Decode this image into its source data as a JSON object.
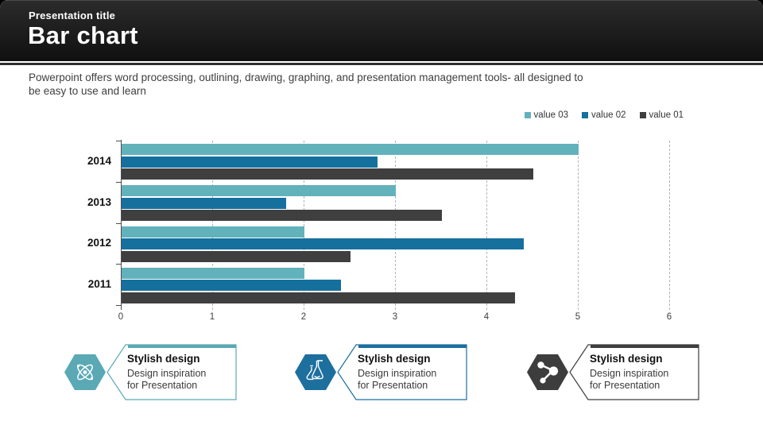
{
  "header": {
    "pretitle": "Presentation title",
    "title": "Bar chart"
  },
  "intro": {
    "line1": "Powerpoint offers word processing, outlining, drawing, graphing, and presentation management tools- all designed to",
    "line2": "be easy to use and learn"
  },
  "chart_data": {
    "type": "bar",
    "orientation": "horizontal",
    "title": "",
    "categories": [
      "2014",
      "2013",
      "2012",
      "2011"
    ],
    "series": [
      {
        "name": "value 03",
        "color": "#62b2bc",
        "values": [
          5.0,
          3.0,
          2.0,
          2.0
        ]
      },
      {
        "name": "value 02",
        "color": "#15709e",
        "values": [
          2.8,
          1.8,
          4.4,
          2.4
        ]
      },
      {
        "name": "value 01",
        "color": "#3f3f3f",
        "values": [
          4.5,
          3.5,
          2.5,
          4.3
        ]
      }
    ],
    "xlim": [
      0,
      6
    ],
    "xticks": [
      "0",
      "1",
      "2",
      "3",
      "4",
      "5",
      "6"
    ],
    "grid": true,
    "gridline_color": "#b5b5b5",
    "axis_color": "#4d4d4d",
    "legend_position": "top-right",
    "legend_order": [
      "value 03",
      "value 02",
      "value 01"
    ]
  },
  "cards": [
    {
      "title": "Stylish design",
      "line1": "Design inspiration",
      "line2": "for Presentation",
      "accent": "#5aa9b5",
      "icon": "atom-icon"
    },
    {
      "title": "Stylish design",
      "line1": "Design inspiration",
      "line2": "for Presentation",
      "accent": "#1d6f9e",
      "icon": "flask-icon"
    },
    {
      "title": "Stylish design",
      "line1": "Design inspiration",
      "line2": "for Presentation",
      "accent": "#3d3d3d",
      "icon": "molecule-icon"
    }
  ]
}
